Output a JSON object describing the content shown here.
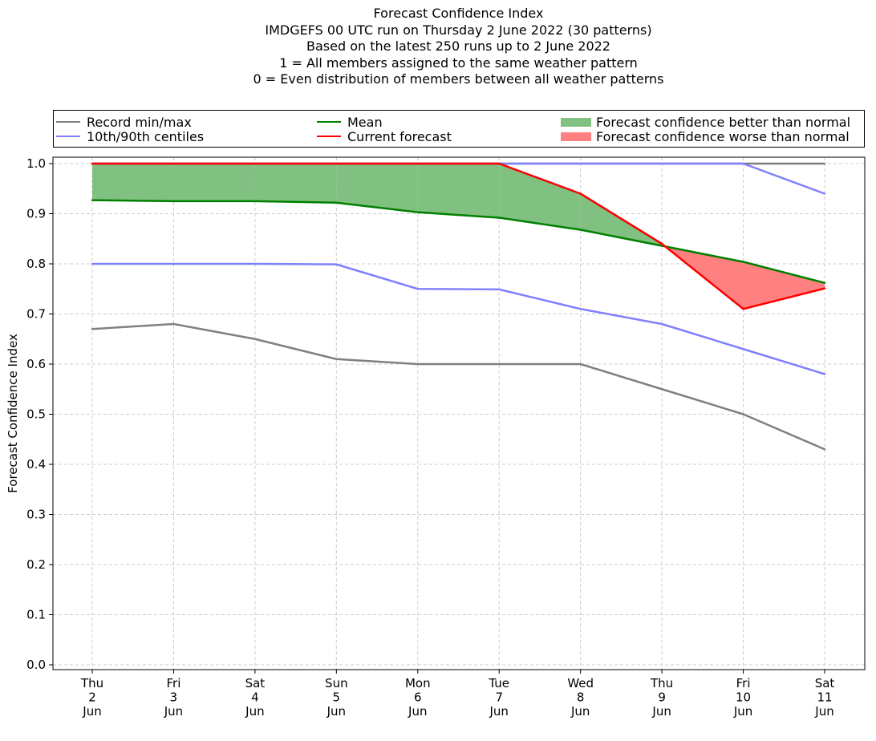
{
  "chart_data": {
    "type": "line",
    "title_lines": [
      "Forecast Confidence Index",
      "IMDGEFS 00 UTC run on Thursday 2 June 2022 (30 patterns)",
      "Based on the latest 250 runs up to 2 June 2022",
      "1 = All members assigned to the same weather pattern",
      "0 = Even distribution of members between all weather patterns"
    ],
    "ylabel": "Forecast Confidence Index",
    "ylim": [
      0.0,
      1.0
    ],
    "yticks": [
      "0.0",
      "0.1",
      "0.2",
      "0.3",
      "0.4",
      "0.5",
      "0.6",
      "0.7",
      "0.8",
      "0.9",
      "1.0"
    ],
    "categories": [
      [
        "Thu",
        "2",
        "Jun"
      ],
      [
        "Fri",
        "3",
        "Jun"
      ],
      [
        "Sat",
        "4",
        "Jun"
      ],
      [
        "Sun",
        "5",
        "Jun"
      ],
      [
        "Mon",
        "6",
        "Jun"
      ],
      [
        "Tue",
        "7",
        "Jun"
      ],
      [
        "Wed",
        "8",
        "Jun"
      ],
      [
        "Thu",
        "9",
        "Jun"
      ],
      [
        "Fri",
        "10",
        "Jun"
      ],
      [
        "Sat",
        "11",
        "Jun"
      ]
    ],
    "grid": true,
    "legend_position": "top",
    "series": [
      {
        "name": "Record min/max",
        "role": "record_min",
        "color": "#808080",
        "values": [
          0.67,
          0.68,
          0.65,
          0.61,
          0.6,
          0.6,
          0.6,
          0.55,
          0.5,
          0.43
        ]
      },
      {
        "name": "Record min/max",
        "role": "record_max",
        "color": "#808080",
        "values": [
          1.0,
          1.0,
          1.0,
          1.0,
          1.0,
          1.0,
          1.0,
          1.0,
          1.0,
          1.0
        ]
      },
      {
        "name": "10th/90th centiles",
        "role": "p10",
        "color": "#8080ff",
        "values": [
          0.8,
          0.8,
          0.8,
          0.799,
          0.75,
          0.749,
          0.71,
          0.68,
          0.63,
          0.58
        ]
      },
      {
        "name": "10th/90th centiles",
        "role": "p90",
        "color": "#8080ff",
        "values": [
          1.0,
          1.0,
          1.0,
          1.0,
          1.0,
          1.0,
          1.0,
          1.0,
          1.0,
          0.94
        ]
      },
      {
        "name": "Mean",
        "role": "mean",
        "color": "#008000",
        "values": [
          0.927,
          0.925,
          0.925,
          0.922,
          0.903,
          0.892,
          0.868,
          0.836,
          0.804,
          0.762
        ]
      },
      {
        "name": "Current forecast",
        "role": "current",
        "color": "#ff0000",
        "values": [
          1.0,
          1.0,
          1.0,
          1.0,
          1.0,
          1.0,
          0.94,
          0.84,
          0.71,
          0.751
        ]
      }
    ],
    "fills": [
      {
        "name": "Forecast confidence better than normal",
        "color": "#80c080"
      },
      {
        "name": "Forecast confidence worse than normal",
        "color": "#ff8080"
      }
    ],
    "legend": [
      {
        "label": "Record min/max",
        "kind": "line",
        "color": "#808080"
      },
      {
        "label": "10th/90th centiles",
        "kind": "line",
        "color": "#8080ff"
      },
      {
        "label": "Mean",
        "kind": "line",
        "color": "#008000"
      },
      {
        "label": "Current forecast",
        "kind": "line",
        "color": "#ff0000"
      },
      {
        "label": "Forecast confidence better than normal",
        "kind": "patch",
        "color": "#80c080"
      },
      {
        "label": "Forecast confidence worse than normal",
        "kind": "patch",
        "color": "#ff8080"
      }
    ]
  }
}
